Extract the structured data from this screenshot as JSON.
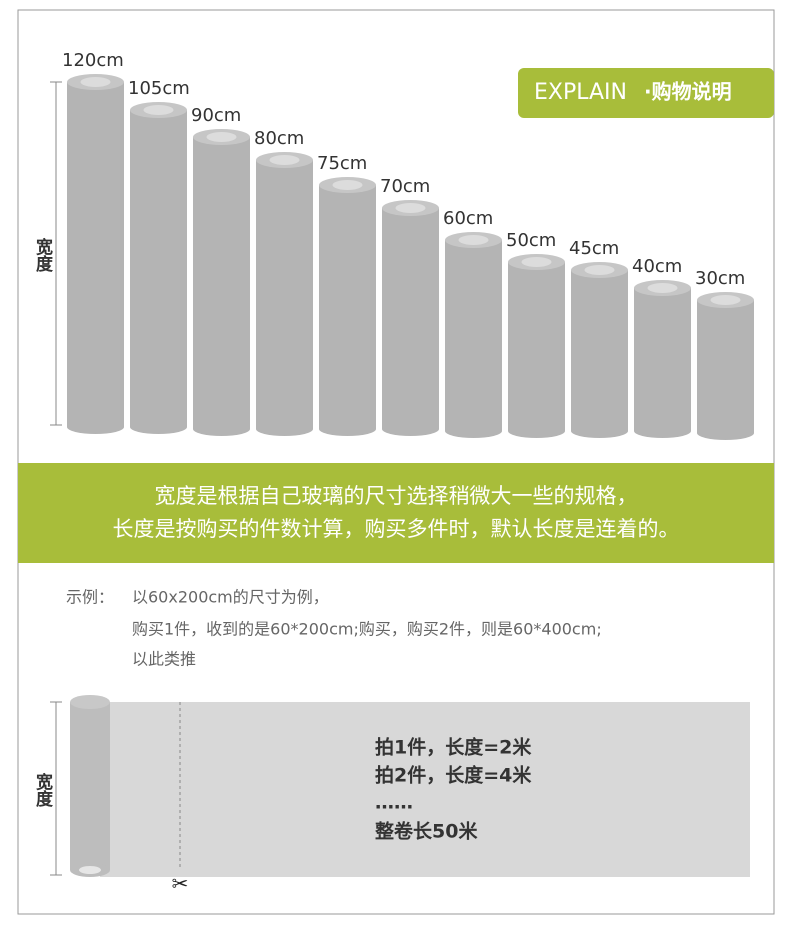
{
  "badge": {
    "en": "EXPLAIN",
    "cn": "·购物说明"
  },
  "rolls": {
    "axis_label": "宽度",
    "labels": [
      "120cm",
      "105cm",
      "90cm",
      "80cm",
      "75cm",
      "70cm",
      "60cm",
      "50cm",
      "45cm",
      "40cm",
      "30cm"
    ]
  },
  "banner": {
    "lines": [
      "宽度是根据自己玻璃的尺寸选择稍微大一些的规格，",
      "长度是按购买的件数计算，购买多件时，默认长度是连着的。"
    ]
  },
  "example": {
    "lead": "示例：",
    "lines": [
      "以60x200cm的尺寸为例，",
      "购买1件，收到的是60*200cm;购买，购买2件，则是60*400cm;",
      "以此类推"
    ]
  },
  "diagram": {
    "axis_label": "宽度",
    "lines": [
      "拍1件，长度=2米",
      "拍2件，长度=4米",
      "……",
      "整卷长50米"
    ]
  }
}
